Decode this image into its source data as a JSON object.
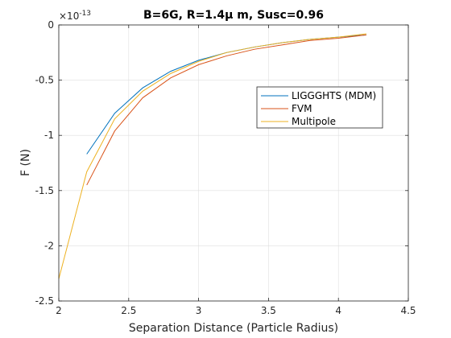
{
  "chart_data": {
    "type": "line",
    "title": "B=6G, R=1.4μ m, Susc=0.96",
    "xlabel": "Separation Distance (Particle Radius)",
    "ylabel": "F (N)",
    "xlim": [
      2,
      4.5
    ],
    "ylim": [
      -2.5,
      0
    ],
    "y_exponent_label": "×10",
    "y_exponent": "-13",
    "xticks": [
      2,
      2.5,
      3,
      3.5,
      4,
      4.5
    ],
    "xtick_labels": [
      "2",
      "2.5",
      "3",
      "3.5",
      "4",
      "4.5"
    ],
    "yticks": [
      0,
      -0.5,
      -1,
      -1.5,
      -2,
      -2.5
    ],
    "ytick_labels": [
      "0",
      "-0.5",
      "-1",
      "-1.5",
      "-2",
      "-2.5"
    ],
    "grid": true,
    "legend_position": "upper-right",
    "series": [
      {
        "name": "LIGGGHTS (MDM)",
        "color": "#0072BD",
        "x": [
          2.2,
          2.4,
          2.6,
          2.8,
          3.0,
          3.2,
          3.4,
          3.6,
          3.8,
          4.0,
          4.2
        ],
        "y": [
          -1.17,
          -0.8,
          -0.57,
          -0.42,
          -0.32,
          -0.25,
          -0.2,
          -0.16,
          -0.13,
          -0.11,
          -0.09
        ]
      },
      {
        "name": "FVM",
        "color": "#D95319",
        "x": [
          2.2,
          2.4,
          2.6,
          2.8,
          3.0,
          3.2,
          3.4,
          3.6,
          3.8,
          4.0,
          4.2
        ],
        "y": [
          -1.45,
          -0.96,
          -0.66,
          -0.48,
          -0.36,
          -0.28,
          -0.22,
          -0.18,
          -0.14,
          -0.12,
          -0.09
        ]
      },
      {
        "name": "Multipole",
        "color": "#EDB120",
        "x": [
          2.0,
          2.2,
          2.4,
          2.6,
          2.8,
          3.0,
          3.2,
          3.4,
          3.6,
          3.8,
          4.0,
          4.2
        ],
        "y": [
          -2.3,
          -1.33,
          -0.85,
          -0.6,
          -0.44,
          -0.33,
          -0.25,
          -0.2,
          -0.16,
          -0.13,
          -0.11,
          -0.08
        ]
      }
    ]
  }
}
